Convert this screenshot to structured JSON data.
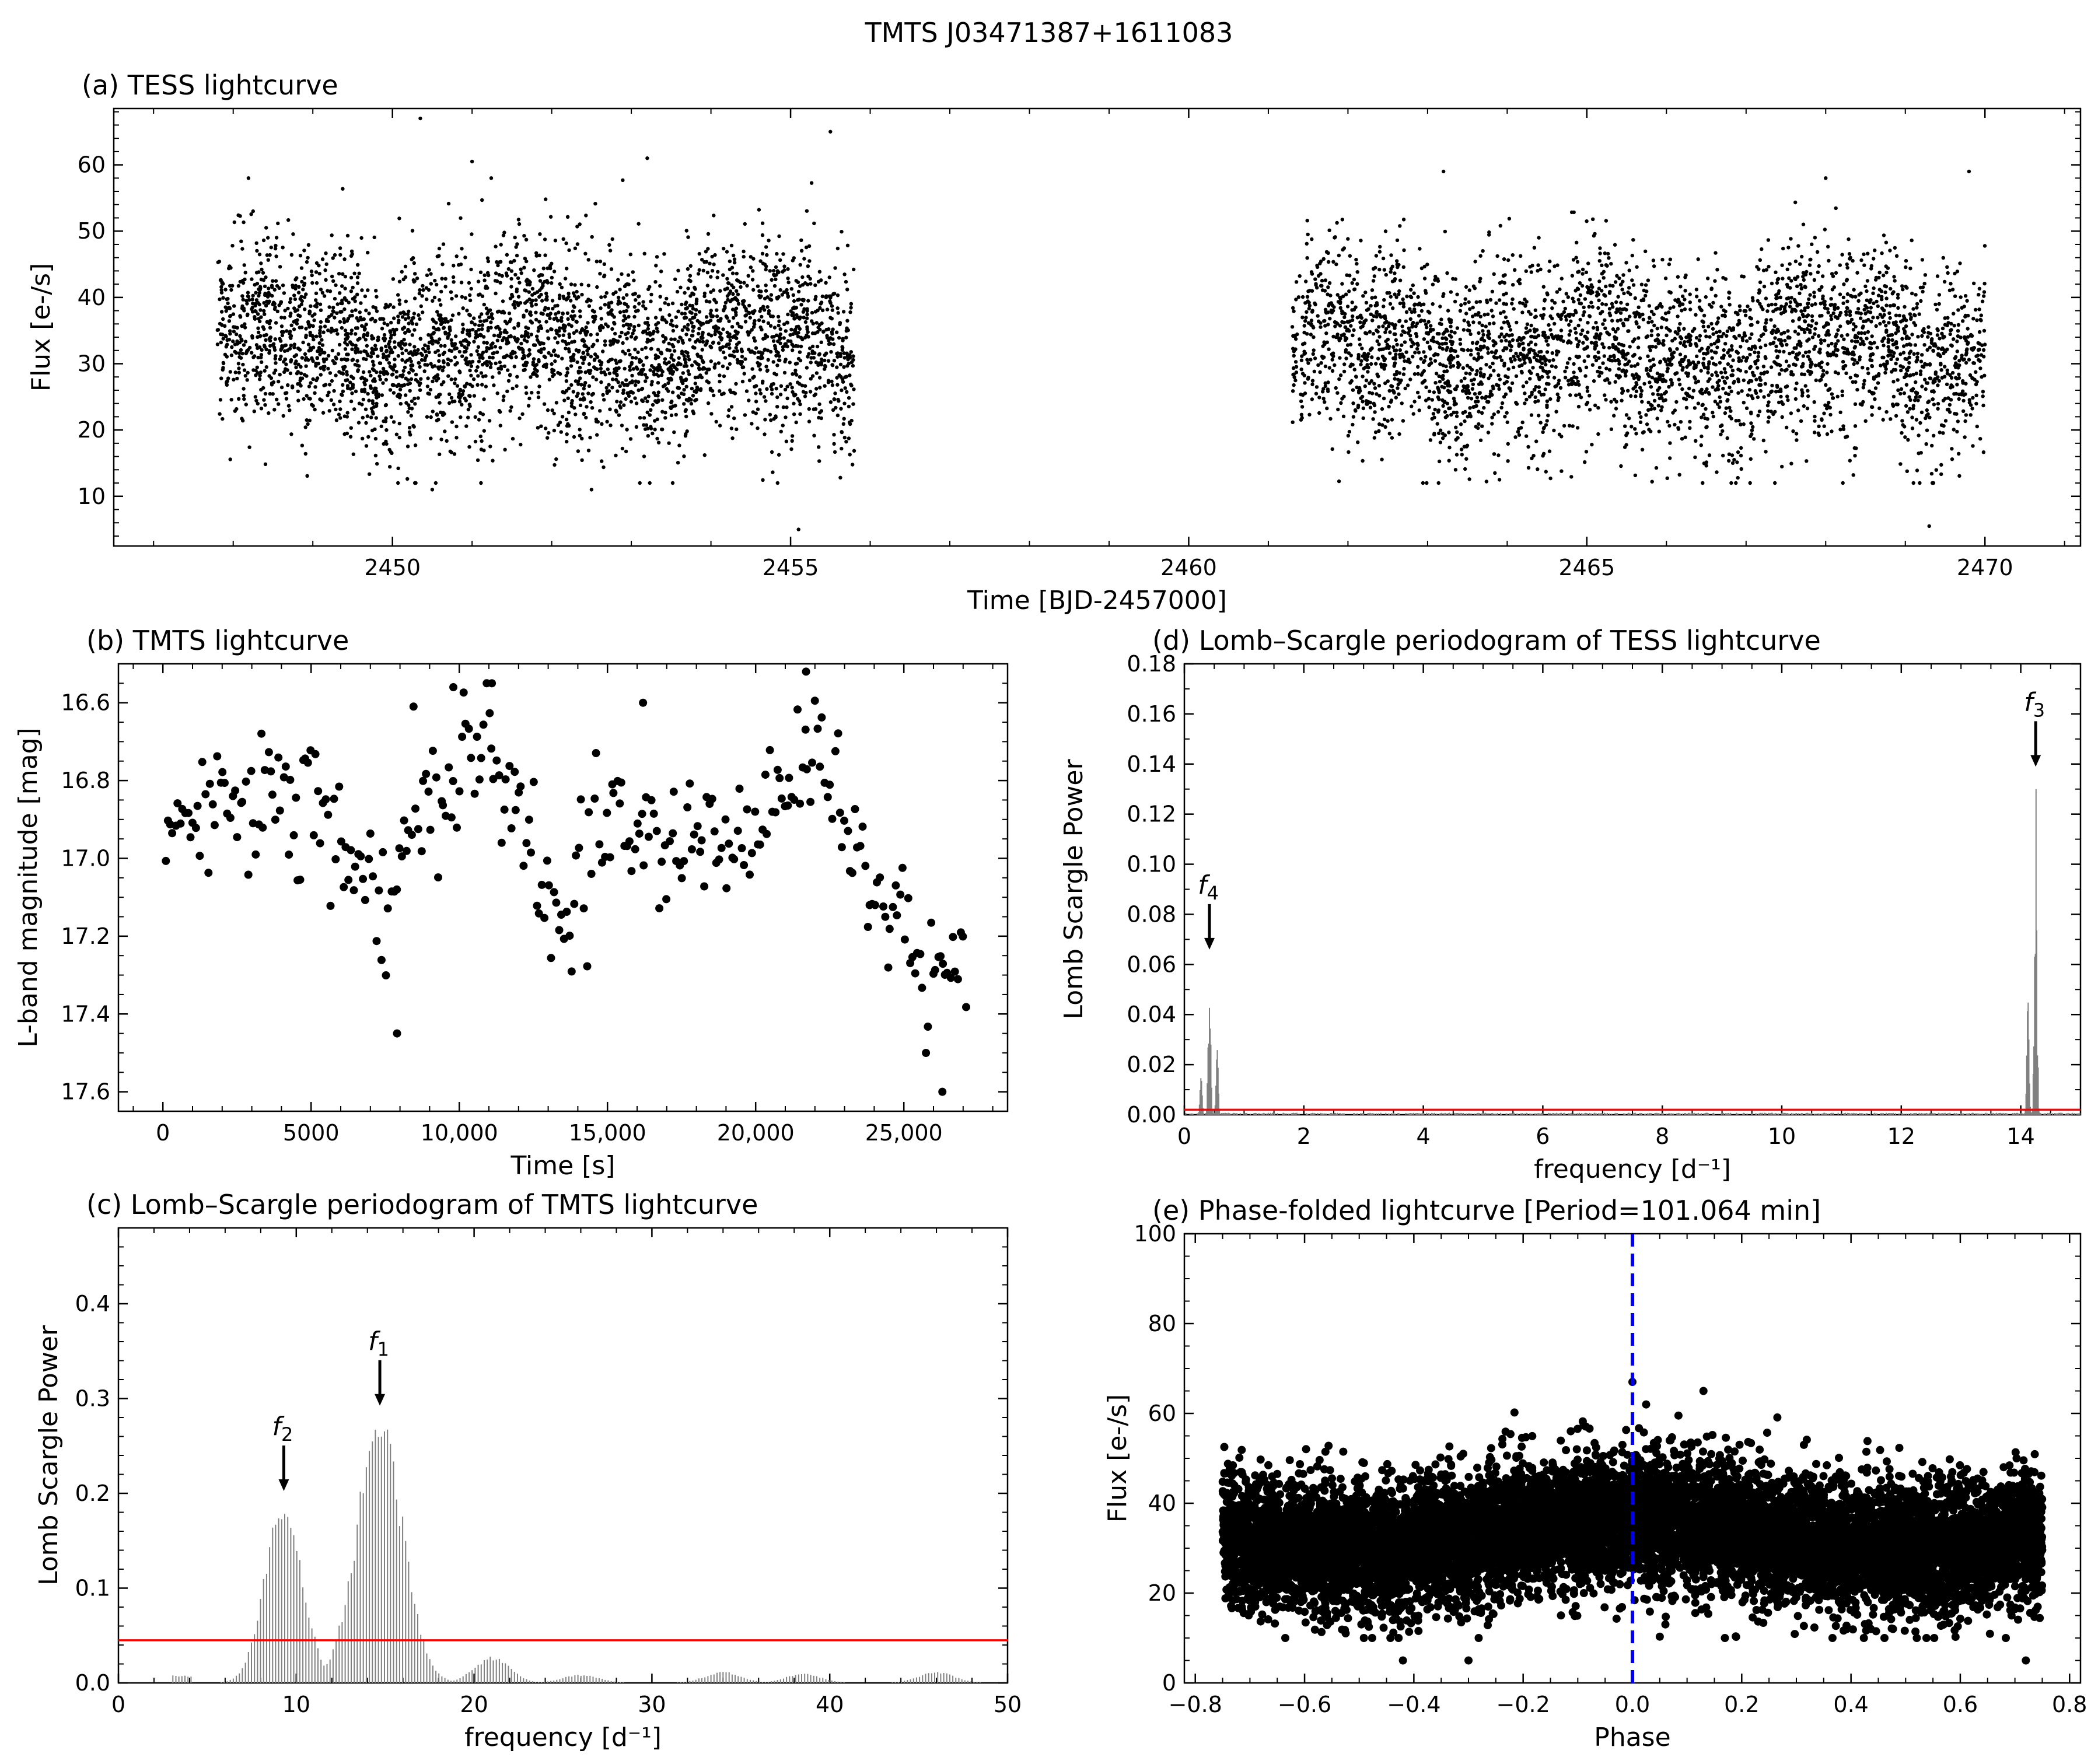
{
  "figure": {
    "title": "TMTS J03471387+1611083"
  },
  "chart_data": [
    {
      "id": "a",
      "type": "scatter",
      "title": "(a) TESS lightcurve",
      "xlabel": "Time [BJD-2457000]",
      "ylabel": "Flux [e-/s]",
      "xlim": [
        2446.5,
        2471.2
      ],
      "ylim": [
        2.5,
        68.5
      ],
      "xticks": [
        2450,
        2455,
        2460,
        2465,
        2470
      ],
      "yticks": [
        10,
        20,
        30,
        40,
        50,
        60
      ],
      "xtick_labels": [
        "2450",
        "2455",
        "2460",
        "2465",
        "2470"
      ],
      "ytick_labels": [
        "10",
        "20",
        "30",
        "40",
        "50",
        "60"
      ],
      "segments": [
        {
          "x_start": 2447.8,
          "x_end": 2455.8,
          "mean": 33,
          "scatter": 7
        },
        {
          "x_start": 2461.3,
          "x_end": 2470.0,
          "mean": 32,
          "scatter": 7
        }
      ],
      "outliers": [
        [
          2450.35,
          67
        ],
        [
          2451.0,
          60.5
        ],
        [
          2453.2,
          61
        ],
        [
          2455.5,
          65
        ],
        [
          2455.1,
          5
        ],
        [
          2469.3,
          5.5
        ],
        [
          2463.2,
          59
        ],
        [
          2468.0,
          58
        ],
        [
          2469.8,
          59
        ],
        [
          2452.5,
          11
        ],
        [
          2450.5,
          11
        ]
      ]
    },
    {
      "id": "b",
      "type": "scatter",
      "title": "(b) TMTS lightcurve",
      "xlabel": "Time [s]",
      "ylabel": "L-band magnitude [mag]",
      "xlim": [
        -1500,
        28500
      ],
      "ylim": [
        17.65,
        16.5
      ],
      "y_inverted": true,
      "xticks": [
        0,
        5000,
        10000,
        15000,
        20000,
        25000
      ],
      "xtick_labels": [
        "0",
        "5000",
        "10,000",
        "15,000",
        "20,000",
        "25,000"
      ],
      "yticks": [
        16.6,
        16.8,
        17.0,
        17.2,
        17.4,
        17.6
      ],
      "ytick_labels": [
        "16.6",
        "16.8",
        "17.0",
        "17.2",
        "17.4",
        "17.6"
      ],
      "trend": [
        [
          0,
          16.95
        ],
        [
          2500,
          16.85
        ],
        [
          4500,
          16.82
        ],
        [
          6000,
          16.95
        ],
        [
          7500,
          17.15
        ],
        [
          8500,
          16.9
        ],
        [
          10200,
          16.72
        ],
        [
          11000,
          16.7
        ],
        [
          12500,
          16.95
        ],
        [
          13500,
          17.18
        ],
        [
          15000,
          16.92
        ],
        [
          17000,
          16.97
        ],
        [
          19000,
          16.92
        ],
        [
          20500,
          16.9
        ],
        [
          22000,
          16.7
        ],
        [
          23500,
          17.0
        ],
        [
          25000,
          17.25
        ],
        [
          26800,
          17.3
        ]
      ],
      "outliers": [
        [
          7900,
          17.45
        ],
        [
          26300,
          17.6
        ],
        [
          11100,
          16.55
        ],
        [
          21700,
          16.52
        ],
        [
          9800,
          16.56
        ],
        [
          16200,
          16.6
        ]
      ],
      "n_points": 320
    },
    {
      "id": "d",
      "type": "line",
      "title": "(d) Lomb–Scargle periodogram of TESS lightcurve",
      "xlabel": "frequency [d⁻¹]",
      "ylabel": "Lomb Scargle Power",
      "xlim": [
        0,
        15
      ],
      "ylim": [
        0,
        0.18
      ],
      "xticks": [
        0,
        2,
        4,
        6,
        8,
        10,
        12,
        14
      ],
      "xtick_labels": [
        "0",
        "2",
        "4",
        "6",
        "8",
        "10",
        "12",
        "14"
      ],
      "yticks": [
        0,
        0.02,
        0.04,
        0.06,
        0.08,
        0.1,
        0.12,
        0.14,
        0.16,
        0.18
      ],
      "ytick_labels": [
        "0.00",
        "0.02",
        "0.04",
        "0.06",
        "0.08",
        "0.10",
        "0.12",
        "0.14",
        "0.16",
        "0.18"
      ],
      "peaks": [
        {
          "label": "f4",
          "x": 0.42,
          "y": 0.065
        },
        {
          "label": "f3",
          "x": 14.25,
          "y": 0.138
        }
      ],
      "threshold": 0.002,
      "series_color": "#808080",
      "threshold_color": "#ff0000"
    },
    {
      "id": "c",
      "type": "line",
      "title": "(c) Lomb–Scargle periodogram of TMTS lightcurve",
      "xlabel": "frequency [d⁻¹]",
      "ylabel": "Lomb Scargle Power",
      "xlim": [
        0,
        50
      ],
      "ylim": [
        0,
        0.48
      ],
      "xticks": [
        0,
        10,
        20,
        30,
        40,
        50
      ],
      "xtick_labels": [
        "0",
        "10",
        "20",
        "30",
        "40",
        "50"
      ],
      "yticks": [
        0,
        0.1,
        0.2,
        0.3,
        0.4
      ],
      "ytick_labels": [
        "0.0",
        "0.1",
        "0.2",
        "0.3",
        "0.4"
      ],
      "peaks": [
        {
          "label": "f2",
          "x": 9.3,
          "y": 0.2
        },
        {
          "label": "f1",
          "x": 14.7,
          "y": 0.29
        }
      ],
      "minor_humps": [
        [
          21,
          0.028
        ],
        [
          26,
          0.009
        ],
        [
          34,
          0.012
        ],
        [
          38.5,
          0.01
        ],
        [
          46,
          0.012
        ]
      ],
      "threshold": 0.045,
      "series_color": "#808080",
      "threshold_color": "#ff0000"
    },
    {
      "id": "e",
      "type": "scatter",
      "title": "(e) Phase-folded lightcurve [Period=101.064 min]",
      "xlabel": "Phase",
      "ylabel": "Flux [e-/s]",
      "xlim": [
        -0.82,
        0.82
      ],
      "ylim": [
        0,
        100
      ],
      "xticks": [
        -0.8,
        -0.6,
        -0.4,
        -0.2,
        0.0,
        0.2,
        0.4,
        0.6,
        0.8
      ],
      "xtick_labels": [
        "−0.8",
        "−0.6",
        "−0.4",
        "−0.2",
        "0.0",
        "0.2",
        "0.4",
        "0.6",
        "0.8"
      ],
      "yticks": [
        0,
        20,
        40,
        60,
        80,
        100
      ],
      "ytick_labels": [
        "0",
        "20",
        "40",
        "60",
        "80",
        "100"
      ],
      "phase_range": [
        -0.75,
        0.75
      ],
      "mean_flux": 33,
      "scatter": 7,
      "marker_line_x": 0.0,
      "marker_line_color": "#0000ee",
      "outliers": [
        [
          0.0,
          67
        ],
        [
          0.13,
          65
        ],
        [
          -0.3,
          5
        ],
        [
          0.72,
          5
        ],
        [
          -0.42,
          5
        ]
      ]
    }
  ]
}
